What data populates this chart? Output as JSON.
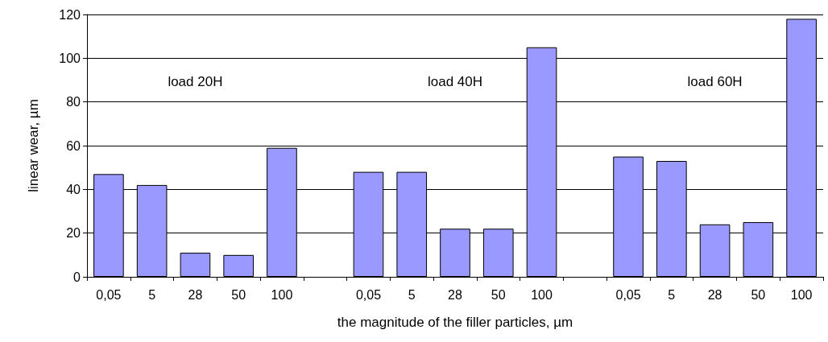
{
  "chart_data": {
    "type": "bar",
    "xlabel": "the magnitude of the filler particles, µm",
    "ylabel": "linear wear, µm",
    "categories": [
      "0,05",
      "5",
      "28",
      "50",
      "100",
      null,
      "0,05",
      "5",
      "28",
      "50",
      "100",
      null,
      "0,05",
      "5",
      "28",
      "50",
      "100"
    ],
    "values": [
      47,
      42,
      11,
      10,
      59,
      null,
      48,
      48,
      22,
      22,
      105,
      null,
      55,
      53,
      24,
      25,
      118
    ],
    "color": "#9999ff",
    "ylim": [
      0,
      120
    ],
    "yticks": [
      0,
      20,
      40,
      60,
      80,
      100,
      120
    ],
    "grid": true,
    "annotations": [
      "load 20H",
      "load 40H",
      "load 60H"
    ]
  }
}
